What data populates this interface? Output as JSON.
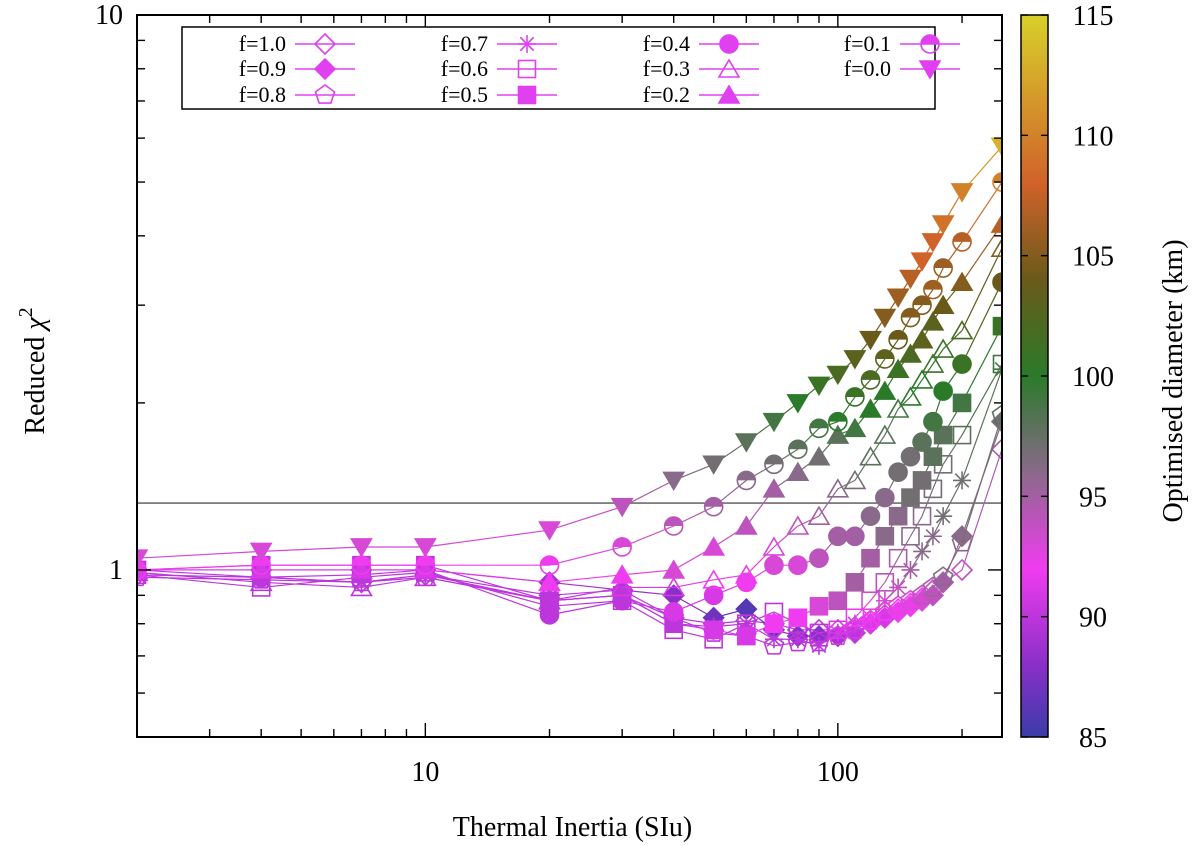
{
  "chart_data": {
    "type": "scatter",
    "title": "",
    "xlabel": "Thermal Inertia (SIu)",
    "ylabel": "Reduced χ²",
    "ylabel_base": "Reduced ",
    "ylabel_symbol": "χ",
    "ylabel_sup": "2",
    "xscale": "log",
    "yscale": "log",
    "xlim": [
      2,
      250
    ],
    "ylim": [
      0.5,
      10
    ],
    "x_tick_labels": [
      {
        "value": 10,
        "label": "10"
      },
      {
        "value": 100,
        "label": "100"
      }
    ],
    "y_tick_labels": [
      {
        "value": 1,
        "label": "1"
      },
      {
        "value": 10,
        "label": "10"
      }
    ],
    "reference_line_y": 1.32,
    "legend_position": "top-left",
    "colorbar": {
      "label": "Optimised diameter (km)",
      "range": [
        85,
        115
      ],
      "ticks": [
        {
          "value": 85,
          "label": "85"
        },
        {
          "value": 90,
          "label": "90"
        },
        {
          "value": 95,
          "label": "95"
        },
        {
          "value": 100,
          "label": "100"
        },
        {
          "value": 105,
          "label": "105"
        },
        {
          "value": 110,
          "label": "110"
        },
        {
          "value": 115,
          "label": "115"
        }
      ],
      "stops": [
        {
          "value": 85,
          "color": "#3a3ca8"
        },
        {
          "value": 88,
          "color": "#8a2fc8"
        },
        {
          "value": 92,
          "color": "#f03cf0"
        },
        {
          "value": 96,
          "color": "#8a6a8a"
        },
        {
          "value": 100,
          "color": "#2a7a2a"
        },
        {
          "value": 104,
          "color": "#6a5a1a"
        },
        {
          "value": 108,
          "color": "#d0622a"
        },
        {
          "value": 115,
          "color": "#d8d02a"
        }
      ]
    },
    "series": [
      {
        "name": "f=1.0",
        "label": "f=1.0",
        "marker": "diamond-open",
        "x": [
          2,
          4,
          7,
          10,
          20,
          30,
          40,
          50,
          60,
          70,
          80,
          90,
          100,
          110,
          120,
          130,
          140,
          150,
          160,
          170,
          200,
          250
        ],
        "y": [
          0.98,
          0.97,
          0.95,
          0.98,
          0.9,
          0.92,
          0.82,
          0.8,
          0.81,
          0.8,
          0.78,
          0.78,
          0.78,
          0.79,
          0.81,
          0.83,
          0.85,
          0.87,
          0.89,
          0.92,
          1.0,
          1.65
        ],
        "d": [
          90,
          90,
          90,
          90,
          90,
          90,
          90,
          90,
          90,
          90,
          90,
          90,
          91,
          91,
          91,
          91,
          92,
          92,
          92,
          93,
          94,
          95
        ]
      },
      {
        "name": "f=0.9",
        "label": "f=0.9",
        "marker": "diamond-filled",
        "x": [
          2,
          4,
          7,
          10,
          20,
          30,
          40,
          50,
          60,
          70,
          80,
          90,
          100,
          110,
          120,
          130,
          140,
          150,
          160,
          170,
          180,
          200,
          250
        ],
        "y": [
          1.0,
          1.0,
          1.0,
          1.0,
          0.95,
          0.92,
          0.9,
          0.82,
          0.85,
          0.78,
          0.76,
          0.76,
          0.76,
          0.77,
          0.8,
          0.82,
          0.84,
          0.86,
          0.88,
          0.9,
          0.95,
          1.15,
          1.85
        ],
        "d": [
          89,
          89,
          89,
          89,
          89,
          89,
          88,
          87,
          86,
          87,
          88,
          88,
          89,
          90,
          91,
          91,
          92,
          92,
          93,
          94,
          95,
          96,
          97
        ]
      },
      {
        "name": "f=0.8",
        "label": "f=0.8",
        "marker": "pentagon-open",
        "x": [
          2,
          4,
          7,
          10,
          20,
          30,
          40,
          50,
          60,
          70,
          80,
          90,
          100,
          110,
          120,
          130,
          140,
          150,
          160,
          170,
          180,
          200,
          250
        ],
        "y": [
          0.97,
          0.96,
          0.95,
          0.97,
          0.88,
          0.9,
          0.82,
          0.77,
          0.76,
          0.73,
          0.74,
          0.74,
          0.76,
          0.78,
          0.81,
          0.84,
          0.86,
          0.88,
          0.9,
          0.93,
          0.97,
          1.12,
          1.9
        ],
        "d": [
          90,
          90,
          90,
          90,
          90,
          90,
          90,
          90,
          90,
          90,
          90,
          90,
          91,
          91,
          92,
          92,
          93,
          93,
          94,
          95,
          96,
          96,
          98
        ]
      },
      {
        "name": "f=0.7",
        "label": "f=0.7",
        "marker": "star",
        "x": [
          2,
          4,
          7,
          10,
          20,
          30,
          40,
          50,
          60,
          70,
          80,
          90,
          100,
          110,
          120,
          130,
          140,
          150,
          160,
          170,
          180,
          200,
          250
        ],
        "y": [
          0.98,
          0.97,
          0.95,
          0.98,
          0.88,
          0.9,
          0.8,
          0.79,
          0.8,
          0.75,
          0.75,
          0.73,
          0.77,
          0.8,
          0.82,
          0.88,
          0.93,
          1.0,
          1.08,
          1.15,
          1.25,
          1.45,
          2.3
        ],
        "d": [
          90,
          90,
          90,
          90,
          90,
          90,
          90,
          90,
          90,
          90,
          90,
          90,
          91,
          91,
          92,
          93,
          94,
          95,
          96,
          96,
          97,
          97,
          99
        ]
      },
      {
        "name": "f=0.6",
        "label": "f=0.6",
        "marker": "square-open",
        "x": [
          2,
          4,
          7,
          10,
          20,
          30,
          40,
          50,
          60,
          70,
          80,
          90,
          100,
          110,
          120,
          130,
          140,
          150,
          160,
          170,
          180,
          200,
          250
        ],
        "y": [
          0.98,
          0.93,
          0.97,
          0.99,
          0.86,
          0.88,
          0.78,
          0.75,
          0.8,
          0.84,
          0.8,
          0.77,
          0.78,
          0.82,
          0.88,
          0.95,
          1.05,
          1.15,
          1.25,
          1.4,
          1.55,
          1.75,
          2.35
        ],
        "d": [
          90,
          90,
          90,
          90,
          90,
          90,
          90,
          90,
          90,
          90,
          90,
          90,
          91,
          92,
          93,
          94,
          95,
          96,
          96,
          97,
          97,
          98,
          99
        ]
      },
      {
        "name": "f=0.5",
        "label": "f=0.5",
        "marker": "square-filled",
        "x": [
          2,
          4,
          7,
          10,
          20,
          30,
          40,
          50,
          60,
          70,
          80,
          90,
          100,
          110,
          120,
          130,
          140,
          150,
          160,
          170,
          180,
          200,
          250
        ],
        "y": [
          1.0,
          1.02,
          1.02,
          1.02,
          0.88,
          0.9,
          0.8,
          0.78,
          0.76,
          0.8,
          0.82,
          0.86,
          0.88,
          0.95,
          1.05,
          1.15,
          1.25,
          1.35,
          1.45,
          1.6,
          1.75,
          2.0,
          2.75
        ],
        "d": [
          90,
          90,
          90,
          90,
          90,
          90,
          90,
          91,
          91,
          92,
          92,
          93,
          94,
          95,
          95,
          96,
          96,
          97,
          97,
          98,
          98,
          99,
          101
        ]
      },
      {
        "name": "f=0.4",
        "label": "f=0.4",
        "marker": "circle-filled",
        "x": [
          2,
          4,
          7,
          10,
          20,
          30,
          40,
          50,
          60,
          70,
          80,
          90,
          100,
          110,
          120,
          130,
          140,
          150,
          160,
          170,
          180,
          200,
          250
        ],
        "y": [
          1.0,
          0.97,
          0.98,
          1.0,
          0.83,
          0.88,
          0.84,
          0.9,
          0.95,
          1.02,
          1.02,
          1.05,
          1.15,
          1.15,
          1.25,
          1.35,
          1.5,
          1.6,
          1.7,
          1.85,
          2.1,
          2.35,
          3.3
        ],
        "d": [
          90,
          90,
          90,
          90,
          90,
          90,
          91,
          91,
          92,
          93,
          93,
          94,
          95,
          95,
          96,
          96,
          97,
          97,
          98,
          99,
          100,
          101,
          104
        ]
      },
      {
        "name": "f=0.3",
        "label": "f=0.3",
        "marker": "triangle-open",
        "x": [
          2,
          4,
          7,
          10,
          20,
          30,
          40,
          50,
          60,
          70,
          80,
          90,
          100,
          110,
          120,
          130,
          140,
          150,
          160,
          170,
          180,
          200,
          250
        ],
        "y": [
          0.99,
          0.95,
          0.93,
          0.97,
          0.88,
          0.93,
          0.93,
          0.96,
          0.98,
          1.1,
          1.2,
          1.25,
          1.4,
          1.45,
          1.6,
          1.75,
          1.95,
          2.05,
          2.2,
          2.35,
          2.5,
          2.7,
          3.8
        ],
        "d": [
          90,
          90,
          90,
          90,
          90,
          91,
          91,
          92,
          92,
          93,
          94,
          95,
          96,
          97,
          98,
          98,
          99,
          100,
          100,
          101,
          101,
          102,
          105
        ]
      },
      {
        "name": "f=0.2",
        "label": "f=0.2",
        "marker": "triangle-filled",
        "x": [
          2,
          4,
          7,
          10,
          20,
          30,
          40,
          50,
          60,
          70,
          80,
          90,
          100,
          110,
          120,
          130,
          140,
          150,
          160,
          170,
          180,
          200,
          250
        ],
        "y": [
          1.0,
          1.0,
          1.0,
          1.0,
          0.95,
          0.98,
          1.0,
          1.1,
          1.2,
          1.4,
          1.5,
          1.6,
          1.75,
          1.8,
          1.95,
          2.1,
          2.3,
          2.45,
          2.6,
          2.8,
          3.0,
          3.3,
          4.2
        ],
        "d": [
          91,
          91,
          91,
          91,
          92,
          92,
          93,
          93,
          94,
          95,
          96,
          97,
          98,
          99,
          100,
          100,
          101,
          102,
          103,
          103,
          104,
          105,
          107
        ]
      },
      {
        "name": "f=0.1",
        "label": "f=0.1",
        "marker": "circle-half",
        "x": [
          2,
          4,
          7,
          10,
          20,
          30,
          40,
          50,
          60,
          70,
          80,
          90,
          100,
          110,
          120,
          130,
          140,
          150,
          160,
          170,
          180,
          200,
          250
        ],
        "y": [
          1.0,
          1.02,
          1.02,
          1.02,
          1.02,
          1.1,
          1.2,
          1.3,
          1.45,
          1.55,
          1.65,
          1.8,
          1.85,
          2.05,
          2.2,
          2.4,
          2.6,
          2.85,
          3.0,
          3.2,
          3.5,
          3.9,
          5.0
        ],
        "d": [
          92,
          92,
          92,
          92,
          92,
          93,
          94,
          95,
          96,
          97,
          98,
          99,
          100,
          101,
          102,
          103,
          104,
          105,
          105,
          106,
          106,
          107,
          110
        ]
      },
      {
        "name": "f=0.0",
        "label": "f=0.0",
        "marker": "triangle-down-filled",
        "x": [
          2,
          4,
          7,
          10,
          20,
          30,
          40,
          50,
          60,
          70,
          80,
          90,
          100,
          110,
          120,
          130,
          140,
          150,
          160,
          170,
          180,
          200,
          250
        ],
        "y": [
          1.05,
          1.08,
          1.1,
          1.1,
          1.18,
          1.3,
          1.45,
          1.55,
          1.7,
          1.85,
          2.0,
          2.15,
          2.25,
          2.4,
          2.6,
          2.85,
          3.1,
          3.35,
          3.6,
          3.9,
          4.2,
          4.8,
          5.8
        ],
        "d": [
          93,
          93,
          93,
          93,
          93,
          94,
          96,
          97,
          98,
          99,
          100,
          101,
          102,
          103,
          104,
          105,
          106,
          107,
          108,
          108,
          109,
          110,
          113
        ]
      }
    ]
  }
}
